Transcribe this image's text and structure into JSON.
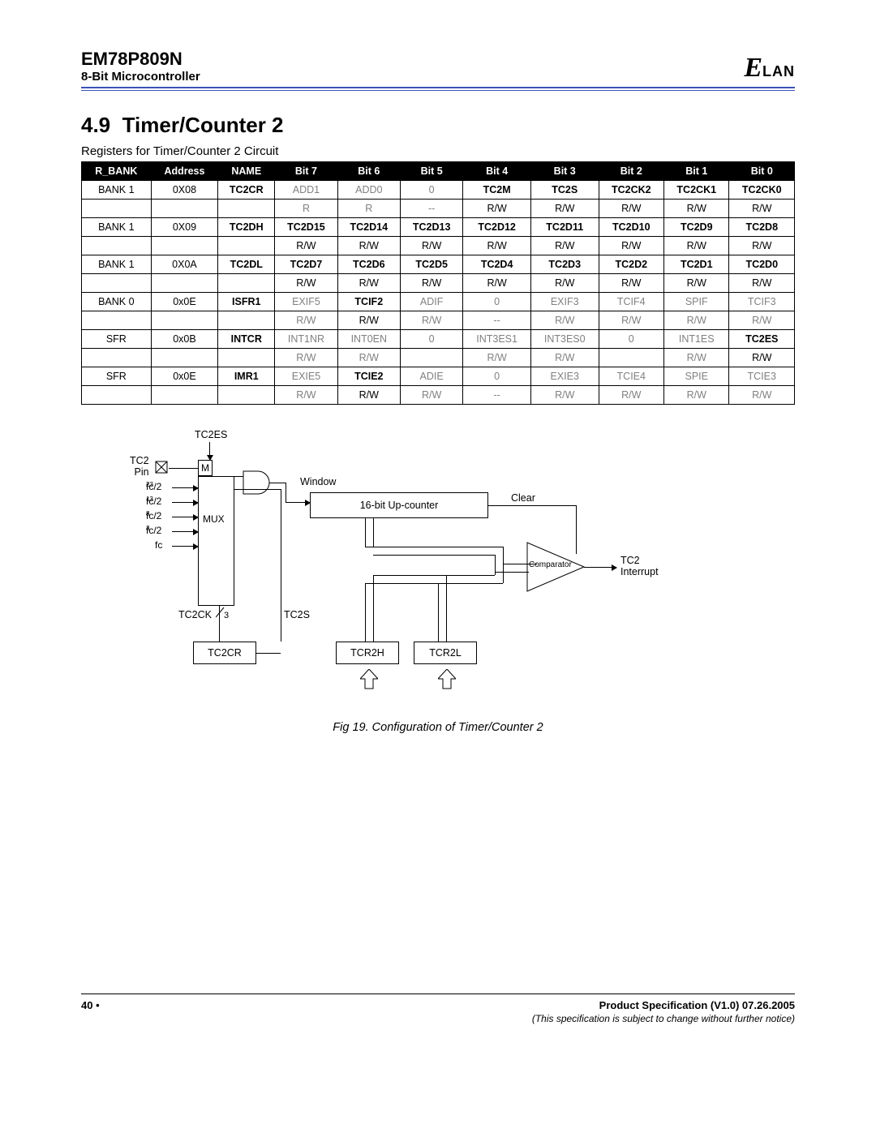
{
  "header": {
    "part_number": "EM78P809N",
    "subtitle": "8-Bit Microcontroller",
    "logo_text": "ELAN"
  },
  "section": {
    "number": "4.9",
    "title": "Timer/Counter 2",
    "table_caption": "Registers for Timer/Counter 2 Circuit"
  },
  "table": {
    "headers": [
      "R_BANK",
      "Address",
      "NAME",
      "Bit 7",
      "Bit 6",
      "Bit 5",
      "Bit 4",
      "Bit 3",
      "Bit 2",
      "Bit 1",
      "Bit 0"
    ],
    "rows": [
      {
        "cells": [
          {
            "t": "BANK 1"
          },
          {
            "t": "0X08"
          },
          {
            "t": "TC2CR",
            "b": 1
          },
          {
            "t": "ADD1",
            "g": 1
          },
          {
            "t": "ADD0",
            "g": 1
          },
          {
            "t": "0",
            "g": 1
          },
          {
            "t": "TC2M",
            "b": 1
          },
          {
            "t": "TC2S",
            "b": 1
          },
          {
            "t": "TC2CK2",
            "b": 1
          },
          {
            "t": "TC2CK1",
            "b": 1
          },
          {
            "t": "TC2CK0",
            "b": 1
          }
        ]
      },
      {
        "cells": [
          {
            "t": ""
          },
          {
            "t": ""
          },
          {
            "t": ""
          },
          {
            "t": "R",
            "g": 1
          },
          {
            "t": "R",
            "g": 1
          },
          {
            "t": "--",
            "g": 1
          },
          {
            "t": "R/W"
          },
          {
            "t": "R/W"
          },
          {
            "t": "R/W"
          },
          {
            "t": "R/W"
          },
          {
            "t": "R/W"
          }
        ]
      },
      {
        "cells": [
          {
            "t": "BANK 1"
          },
          {
            "t": "0X09"
          },
          {
            "t": "TC2DH",
            "b": 1
          },
          {
            "t": "TC2D15",
            "b": 1
          },
          {
            "t": "TC2D14",
            "b": 1
          },
          {
            "t": "TC2D13",
            "b": 1
          },
          {
            "t": "TC2D12",
            "b": 1
          },
          {
            "t": "TC2D11",
            "b": 1
          },
          {
            "t": "TC2D10",
            "b": 1
          },
          {
            "t": "TC2D9",
            "b": 1
          },
          {
            "t": "TC2D8",
            "b": 1
          }
        ]
      },
      {
        "cells": [
          {
            "t": ""
          },
          {
            "t": ""
          },
          {
            "t": ""
          },
          {
            "t": "R/W"
          },
          {
            "t": "R/W"
          },
          {
            "t": "R/W"
          },
          {
            "t": "R/W"
          },
          {
            "t": "R/W"
          },
          {
            "t": "R/W"
          },
          {
            "t": "R/W"
          },
          {
            "t": "R/W"
          }
        ]
      },
      {
        "cells": [
          {
            "t": "BANK 1"
          },
          {
            "t": "0X0A"
          },
          {
            "t": "TC2DL",
            "b": 1
          },
          {
            "t": "TC2D7",
            "b": 1
          },
          {
            "t": "TC2D6",
            "b": 1
          },
          {
            "t": "TC2D5",
            "b": 1
          },
          {
            "t": "TC2D4",
            "b": 1
          },
          {
            "t": "TC2D3",
            "b": 1
          },
          {
            "t": "TC2D2",
            "b": 1
          },
          {
            "t": "TC2D1",
            "b": 1
          },
          {
            "t": "TC2D0",
            "b": 1
          }
        ]
      },
      {
        "cells": [
          {
            "t": ""
          },
          {
            "t": ""
          },
          {
            "t": ""
          },
          {
            "t": "R/W"
          },
          {
            "t": "R/W"
          },
          {
            "t": "R/W"
          },
          {
            "t": "R/W"
          },
          {
            "t": "R/W"
          },
          {
            "t": "R/W"
          },
          {
            "t": "R/W"
          },
          {
            "t": "R/W"
          }
        ]
      },
      {
        "cells": [
          {
            "t": "BANK 0"
          },
          {
            "t": "0x0E"
          },
          {
            "t": "ISFR1",
            "b": 1
          },
          {
            "t": "EXIF5",
            "g": 1
          },
          {
            "t": "TCIF2",
            "b": 1
          },
          {
            "t": "ADIF",
            "g": 1
          },
          {
            "t": "0",
            "g": 1
          },
          {
            "t": "EXIF3",
            "g": 1
          },
          {
            "t": "TCIF4",
            "g": 1
          },
          {
            "t": "SPIF",
            "g": 1
          },
          {
            "t": "TCIF3",
            "g": 1
          }
        ]
      },
      {
        "cells": [
          {
            "t": ""
          },
          {
            "t": ""
          },
          {
            "t": ""
          },
          {
            "t": "R/W",
            "g": 1
          },
          {
            "t": "R/W"
          },
          {
            "t": "R/W",
            "g": 1
          },
          {
            "t": "--",
            "g": 1
          },
          {
            "t": "R/W",
            "g": 1
          },
          {
            "t": "R/W",
            "g": 1
          },
          {
            "t": "R/W",
            "g": 1
          },
          {
            "t": "R/W",
            "g": 1
          }
        ]
      },
      {
        "cells": [
          {
            "t": "SFR"
          },
          {
            "t": "0x0B"
          },
          {
            "t": "INTCR",
            "b": 1
          },
          {
            "t": "INT1NR",
            "g": 1
          },
          {
            "t": "INT0EN",
            "g": 1
          },
          {
            "t": "0",
            "g": 1
          },
          {
            "t": "INT3ES1",
            "g": 1
          },
          {
            "t": "INT3ES0",
            "g": 1
          },
          {
            "t": "0",
            "g": 1
          },
          {
            "t": "INT1ES",
            "g": 1
          },
          {
            "t": "TC2ES",
            "b": 1
          }
        ]
      },
      {
        "cells": [
          {
            "t": ""
          },
          {
            "t": ""
          },
          {
            "t": ""
          },
          {
            "t": "R/W",
            "g": 1
          },
          {
            "t": "R/W",
            "g": 1
          },
          {
            "t": ""
          },
          {
            "t": "R/W",
            "g": 1
          },
          {
            "t": "R/W",
            "g": 1
          },
          {
            "t": ""
          },
          {
            "t": "R/W",
            "g": 1
          },
          {
            "t": "R/W"
          }
        ]
      },
      {
        "cells": [
          {
            "t": "SFR"
          },
          {
            "t": "0x0E"
          },
          {
            "t": "IMR1",
            "b": 1
          },
          {
            "t": "EXIE5",
            "g": 1
          },
          {
            "t": "TCIE2",
            "b": 1
          },
          {
            "t": "ADIE",
            "g": 1
          },
          {
            "t": "0",
            "g": 1
          },
          {
            "t": "EXIE3",
            "g": 1
          },
          {
            "t": "TCIE4",
            "g": 1
          },
          {
            "t": "SPIE",
            "g": 1
          },
          {
            "t": "TCIE3",
            "g": 1
          }
        ]
      },
      {
        "cells": [
          {
            "t": ""
          },
          {
            "t": ""
          },
          {
            "t": ""
          },
          {
            "t": "R/W",
            "g": 1
          },
          {
            "t": "R/W"
          },
          {
            "t": "R/W",
            "g": 1
          },
          {
            "t": "--",
            "g": 1
          },
          {
            "t": "R/W",
            "g": 1
          },
          {
            "t": "R/W",
            "g": 1
          },
          {
            "t": "R/W",
            "g": 1
          },
          {
            "t": "R/W",
            "g": 1
          }
        ]
      }
    ]
  },
  "diagram": {
    "labels": {
      "tc2es": "TC2ES",
      "tc2pin": "TC2\nPin",
      "m": "M",
      "mux": "MUX",
      "window": "Window",
      "upcounter": "16-bit Up-counter",
      "clear": "Clear",
      "comparator": "Comparator",
      "tc2_interrupt": "TC2\nInterrupt",
      "tc2ck": "TC2CK",
      "tc2ck_bits": "3",
      "tc2s": "TC2S",
      "tc2cr": "TC2CR",
      "tcr2h": "TCR2H",
      "tcr2l": "TCR2L",
      "fc_2a": "fc/2",
      "fc_2b": "fc/2",
      "fc_2c": "fc/2",
      "fc_2d": "fc/2",
      "fc": "fc",
      "sup_a": "23",
      "sup_b": "13",
      "sup_c": "8",
      "sup_d": "3"
    },
    "caption": "Fig 19. Configuration of Timer/Counter 2"
  },
  "footer": {
    "page": "40 •",
    "spec": "Product Specification (V1.0) 07.26.2005",
    "note": "(This specification is subject to change without further notice)"
  }
}
